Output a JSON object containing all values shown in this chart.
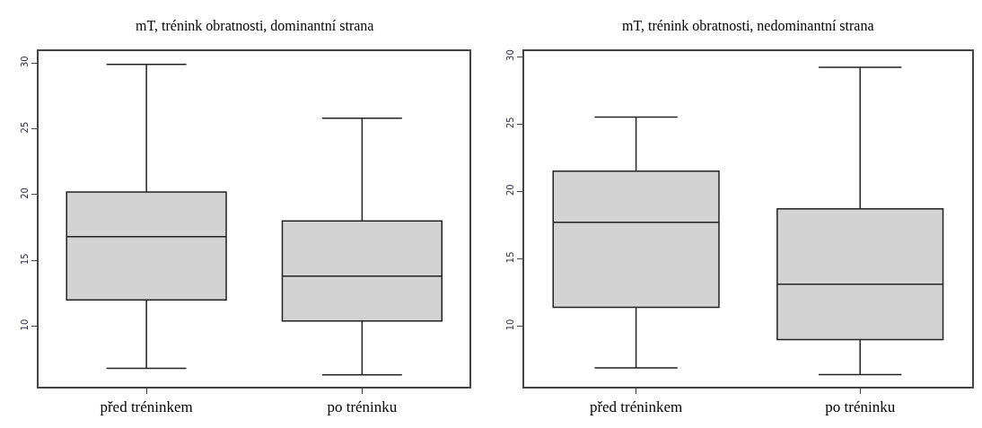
{
  "chart_data": [
    {
      "type": "box",
      "title": "mT, trénink obratnosti, dominantní strana",
      "categories": [
        "před tréninkem",
        "po tréninku"
      ],
      "colors": [
        "#d3d3d3",
        "#d3d3d3"
      ],
      "boxes": [
        {
          "low": 6.8,
          "q1": 12.0,
          "median": 16.8,
          "q3": 20.2,
          "high": 29.9
        },
        {
          "low": 6.3,
          "q1": 10.4,
          "median": 13.8,
          "q3": 18.0,
          "high": 25.8
        }
      ],
      "ylim": [
        5.4,
        30.9
      ],
      "yticks": [
        10,
        15,
        20,
        25,
        30
      ]
    },
    {
      "type": "box",
      "title": "mT, trénink obratnosti, nedominantní strana",
      "categories": [
        "před tréninkem",
        "po tréninku"
      ],
      "colors": [
        "#d3d3d3",
        "#d3d3d3"
      ],
      "boxes": [
        {
          "low": 6.9,
          "q1": 11.4,
          "median": 17.7,
          "q3": 21.5,
          "high": 25.5
        },
        {
          "low": 6.4,
          "q1": 9.0,
          "median": 13.1,
          "q3": 18.7,
          "high": 29.2
        }
      ],
      "ylim": [
        5.5,
        30.4
      ],
      "yticks": [
        10,
        15,
        20,
        25,
        30
      ]
    }
  ]
}
